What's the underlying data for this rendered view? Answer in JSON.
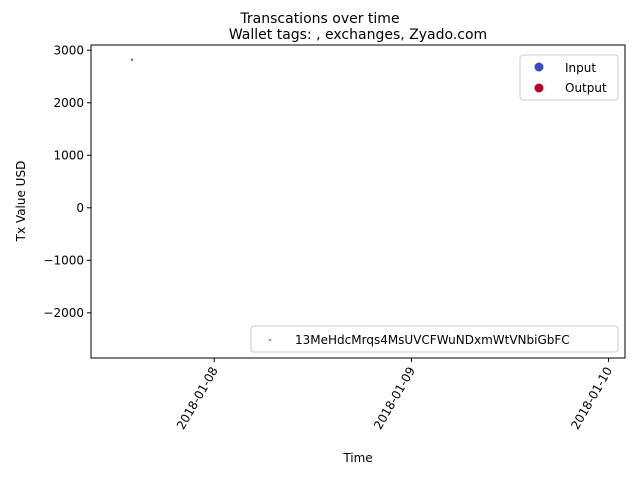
{
  "chart_data": {
    "type": "scatter",
    "suptitle": "Transcations over time",
    "title": "Wallet tags: , exchanges, Zyado.com",
    "xlabel": "Time",
    "ylabel": "Tx Value USD",
    "x_ticks": [
      "2018-01-08",
      "2018-01-09",
      "2018-01-10"
    ],
    "xlim": [
      "2018-01-07 09:00",
      "2018-01-10 02:00"
    ],
    "y_ticks": [
      -2000,
      -1000,
      0,
      1000,
      2000,
      3000
    ],
    "ylim": [
      -2860,
      3100
    ],
    "grid": false,
    "series": [
      {
        "name": "Output",
        "color": "#b40426",
        "points": [
          {
            "x": "2018-01-07 14:00",
            "y": 2820
          }
        ]
      }
    ],
    "legend_color": {
      "placement": "upper right",
      "entries": [
        {
          "label": "Input",
          "color": "#3b4cc0"
        },
        {
          "label": "Output",
          "color": "#b40426"
        }
      ]
    },
    "legend_address": {
      "placement": "lower right",
      "entries": [
        {
          "label": "13MeHdcMrqs4MsUVCFWuNDxmWtVNbiGbFC",
          "color": "#2ca02c"
        }
      ]
    }
  }
}
